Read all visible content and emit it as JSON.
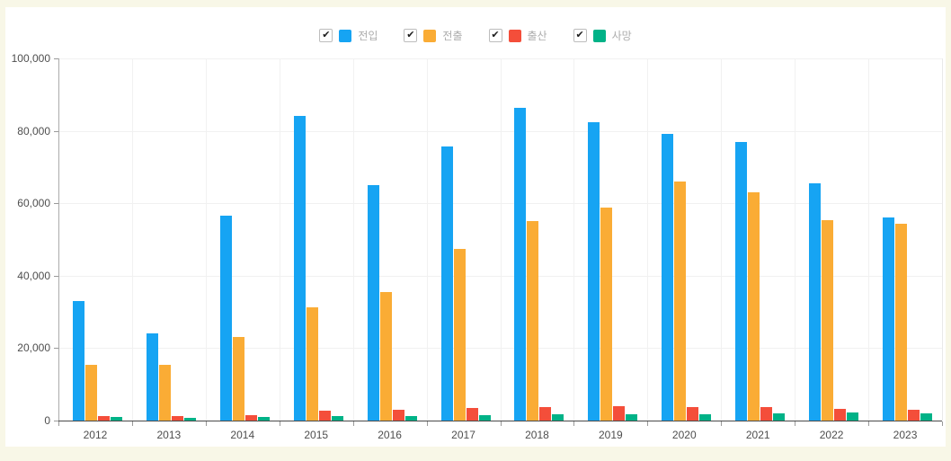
{
  "page": {
    "background": "#F8F7E7",
    "panel_background": "#FFFFFF"
  },
  "legend": {
    "items": [
      {
        "label": "전입",
        "color": "#16A4F3",
        "checked": true,
        "check_glyph": "✔"
      },
      {
        "label": "전출",
        "color": "#FAAC35",
        "checked": true,
        "check_glyph": "✔"
      },
      {
        "label": "출산",
        "color": "#F44E3A",
        "checked": true,
        "check_glyph": "✔"
      },
      {
        "label": "사망",
        "color": "#00B287",
        "checked": true,
        "check_glyph": "✔"
      }
    ]
  },
  "chart_data": {
    "type": "bar",
    "title": "",
    "xlabel": "",
    "ylabel": "",
    "categories": [
      "2012",
      "2013",
      "2014",
      "2015",
      "2016",
      "2017",
      "2018",
      "2019",
      "2020",
      "2021",
      "2022",
      "2023"
    ],
    "series": [
      {
        "name": "전입",
        "color": "#16A4F3",
        "values": [
          33000,
          24000,
          56600,
          84000,
          65100,
          75800,
          86400,
          82500,
          79100,
          77000,
          65500,
          56100
        ]
      },
      {
        "name": "전출",
        "color": "#FAAC35",
        "values": [
          15500,
          15400,
          23200,
          31200,
          35400,
          47300,
          55100,
          58700,
          65900,
          63000,
          55400,
          54300
        ]
      },
      {
        "name": "출산",
        "color": "#F44E3A",
        "values": [
          1200,
          1150,
          1550,
          2650,
          3100,
          3500,
          3800,
          3950,
          3600,
          3650,
          3250,
          3000
        ]
      },
      {
        "name": "사망",
        "color": "#00B287",
        "values": [
          900,
          850,
          1000,
          1200,
          1350,
          1500,
          1650,
          1750,
          1800,
          1900,
          2150,
          2050
        ]
      }
    ],
    "ylim": [
      0,
      100000
    ],
    "y_ticks": [
      "0",
      "20,000",
      "40,000",
      "60,000",
      "80,000",
      "100,000"
    ],
    "grid": true,
    "legend_position": "top",
    "style": {
      "grid_color": "#F1F1F1",
      "plot_border_color": "#E9E9E9",
      "y_axis_line_color": "#ABABAB",
      "x_axis_line_color": "#4A4A4A",
      "tick_color": "#999999",
      "axis_text_color": "#4E4E4E"
    }
  }
}
